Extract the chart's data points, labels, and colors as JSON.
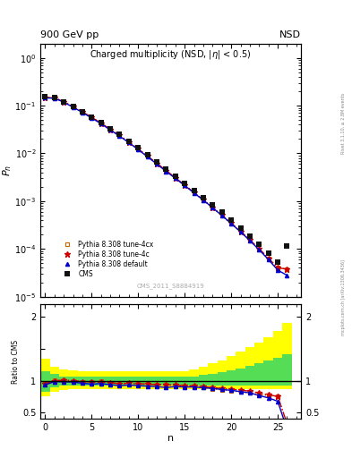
{
  "title_top": "900 GeV pp",
  "title_top_right": "NSD",
  "title_main": "Charged multiplicity (NSD, |\\eta| < 0.5)",
  "ylabel_main": "$P_n$",
  "ylabel_ratio": "Ratio to CMS",
  "xlabel": "n",
  "right_label": "Rivet 3.1.10, ≥ 2.8M events",
  "watermark": "CMS_2011_S8884919",
  "arxiv_label": "mcplots.cern.ch [arXiv:1306.3436]",
  "cms_n": [
    0,
    1,
    2,
    3,
    4,
    5,
    6,
    7,
    8,
    9,
    10,
    11,
    12,
    13,
    14,
    15,
    16,
    17,
    18,
    19,
    20,
    21,
    22,
    23,
    24,
    25,
    26
  ],
  "cms_y": [
    0.155,
    0.145,
    0.12,
    0.095,
    0.075,
    0.058,
    0.044,
    0.033,
    0.025,
    0.018,
    0.013,
    0.0093,
    0.0066,
    0.0047,
    0.0033,
    0.00235,
    0.00165,
    0.00118,
    0.00083,
    0.00058,
    0.0004,
    0.000275,
    0.000185,
    0.000125,
    8.2e-05,
    5.3e-05,
    0.000115
  ],
  "pythia_default_n": [
    0,
    1,
    2,
    3,
    4,
    5,
    6,
    7,
    8,
    9,
    10,
    11,
    12,
    13,
    14,
    15,
    16,
    17,
    18,
    19,
    20,
    21,
    22,
    23,
    24,
    25,
    26
  ],
  "pythia_default_y": [
    0.145,
    0.143,
    0.118,
    0.093,
    0.072,
    0.055,
    0.042,
    0.031,
    0.023,
    0.0168,
    0.012,
    0.0085,
    0.006,
    0.0042,
    0.003,
    0.00212,
    0.00149,
    0.00105,
    0.00073,
    0.0005,
    0.00034,
    0.000228,
    0.00015,
    9.6e-05,
    6e-05,
    3.6e-05,
    2.8e-05
  ],
  "pythia_4c_n": [
    0,
    1,
    2,
    3,
    4,
    5,
    6,
    7,
    8,
    9,
    10,
    11,
    12,
    13,
    14,
    15,
    16,
    17,
    18,
    19,
    20,
    21,
    22,
    23,
    24,
    25,
    26
  ],
  "pythia_4c_y": [
    0.148,
    0.145,
    0.121,
    0.095,
    0.074,
    0.057,
    0.043,
    0.032,
    0.0238,
    0.0173,
    0.0124,
    0.0088,
    0.0062,
    0.0044,
    0.00308,
    0.00217,
    0.00152,
    0.00107,
    0.00074,
    0.00051,
    0.000347,
    0.000234,
    0.000155,
    0.000101,
    6.4e-05,
    4e-05,
    3.8e-05
  ],
  "pythia_4cx_n": [
    0,
    1,
    2,
    3,
    4,
    5,
    6,
    7,
    8,
    9,
    10,
    11,
    12,
    13,
    14,
    15,
    16,
    17,
    18,
    19,
    20,
    21,
    22,
    23,
    24,
    25,
    26
  ],
  "pythia_4cx_y": [
    0.15,
    0.146,
    0.121,
    0.095,
    0.074,
    0.057,
    0.0435,
    0.032,
    0.0238,
    0.0172,
    0.0123,
    0.0088,
    0.0062,
    0.0044,
    0.00306,
    0.00215,
    0.0015,
    0.00105,
    0.000724,
    0.000496,
    0.000337,
    0.000226,
    0.00015,
    9.8e-05,
    6.3e-05,
    4e-05,
    3.8e-05
  ],
  "ratio_n": [
    0,
    1,
    2,
    3,
    4,
    5,
    6,
    7,
    8,
    9,
    10,
    11,
    12,
    13,
    14,
    15,
    16,
    17,
    18,
    19,
    20,
    21,
    22,
    23,
    24,
    25,
    26
  ],
  "ratio_default": [
    0.935,
    0.986,
    0.983,
    0.979,
    0.96,
    0.948,
    0.955,
    0.939,
    0.92,
    0.933,
    0.923,
    0.914,
    0.909,
    0.894,
    0.909,
    0.902,
    0.903,
    0.89,
    0.88,
    0.862,
    0.85,
    0.829,
    0.811,
    0.768,
    0.732,
    0.679,
    0.243
  ],
  "ratio_4c": [
    0.955,
    1.0,
    1.008,
    1.0,
    0.987,
    0.983,
    0.977,
    0.97,
    0.952,
    0.961,
    0.954,
    0.946,
    0.939,
    0.936,
    0.933,
    0.923,
    0.921,
    0.907,
    0.892,
    0.879,
    0.868,
    0.851,
    0.838,
    0.808,
    0.78,
    0.755,
    0.331
  ],
  "ratio_4cx": [
    0.968,
    1.007,
    1.008,
    1.0,
    0.987,
    0.983,
    0.989,
    0.97,
    0.952,
    0.956,
    0.946,
    0.946,
    0.939,
    0.936,
    0.927,
    0.915,
    0.909,
    0.89,
    0.872,
    0.855,
    0.843,
    0.822,
    0.811,
    0.784,
    0.768,
    0.755,
    0.331
  ],
  "band_n_edges": [
    0,
    1,
    2,
    3,
    4,
    5,
    6,
    7,
    8,
    9,
    10,
    11,
    12,
    13,
    14,
    15,
    16,
    17,
    18,
    19,
    20,
    21,
    22,
    23,
    24,
    25,
    26,
    27
  ],
  "band_yellow_lo": [
    0.75,
    0.82,
    0.86,
    0.87,
    0.87,
    0.87,
    0.87,
    0.87,
    0.87,
    0.87,
    0.87,
    0.87,
    0.87,
    0.87,
    0.87,
    0.87,
    0.87,
    0.87,
    0.87,
    0.87,
    0.87,
    0.87,
    0.87,
    0.87,
    0.87,
    0.87,
    0.87,
    0.87
  ],
  "band_yellow_hi": [
    1.35,
    1.22,
    1.18,
    1.16,
    1.15,
    1.15,
    1.15,
    1.15,
    1.15,
    1.15,
    1.15,
    1.15,
    1.15,
    1.15,
    1.15,
    1.15,
    1.18,
    1.22,
    1.27,
    1.32,
    1.38,
    1.45,
    1.52,
    1.6,
    1.68,
    1.78,
    1.9,
    2.0
  ],
  "band_green_lo": [
    0.83,
    0.89,
    0.92,
    0.93,
    0.93,
    0.93,
    0.93,
    0.93,
    0.93,
    0.93,
    0.93,
    0.93,
    0.93,
    0.93,
    0.93,
    0.93,
    0.93,
    0.93,
    0.93,
    0.93,
    0.93,
    0.93,
    0.93,
    0.93,
    0.93,
    0.93,
    0.93,
    0.93
  ],
  "band_green_hi": [
    1.15,
    1.1,
    1.07,
    1.06,
    1.06,
    1.06,
    1.06,
    1.06,
    1.06,
    1.06,
    1.06,
    1.06,
    1.06,
    1.06,
    1.06,
    1.06,
    1.07,
    1.09,
    1.11,
    1.13,
    1.16,
    1.19,
    1.23,
    1.27,
    1.31,
    1.36,
    1.42,
    1.48
  ],
  "cms_color": "#111111",
  "default_color": "#0000cc",
  "tune4c_color": "#cc0000",
  "tune4cx_color": "#cc6600",
  "ylim_main": [
    1e-05,
    2.0
  ],
  "ylim_ratio": [
    0.4,
    2.2
  ],
  "xlim": [
    -0.5,
    27.5
  ]
}
